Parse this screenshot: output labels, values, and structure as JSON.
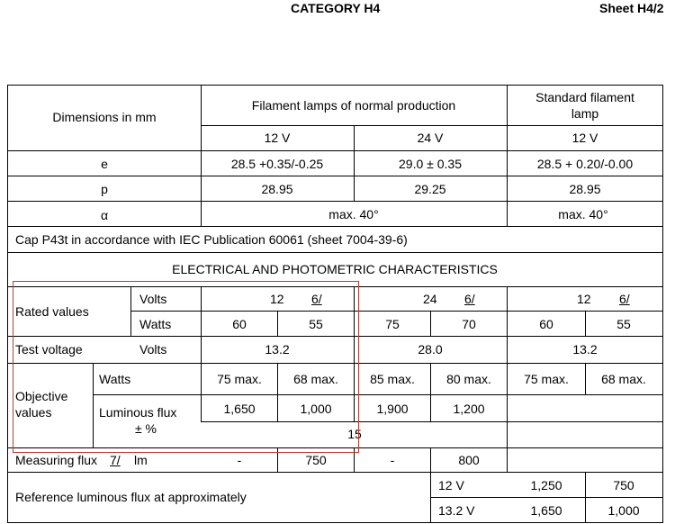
{
  "header": {
    "title": "CATEGORY H4",
    "sheet": "Sheet H4/2"
  },
  "table": {
    "dimensions_label": "Dimensions in mm",
    "normal_production": "Filament lamps of normal production",
    "standard_line1": "Standard filament",
    "standard_line2": "lamp",
    "voltages": [
      "12 V",
      "24 V",
      "12 V"
    ],
    "rows": [
      {
        "name": "e",
        "values": [
          "28.5 +0.35/-0.25",
          "29.0 ± 0.35",
          "28.5 + 0.20/-0.00"
        ]
      },
      {
        "name": "p",
        "values": [
          "28.95",
          "29.25",
          "28.95"
        ]
      },
      {
        "name": "α",
        "values": [
          "max. 40°",
          "max. 40°"
        ]
      }
    ],
    "cap": "Cap P43t in accordance with IEC Publication 60061 (sheet 7004-39-6)",
    "elec_header": "ELECTRICAL AND PHOTOMETRIC CHARACTERISTICS",
    "rated_values": "Rated values",
    "volts": "Volts",
    "watts": "Watts",
    "rated_volts": [
      {
        "num": "12",
        "ref": "6/"
      },
      {
        "num": "24",
        "ref": "6/"
      },
      {
        "num": "12",
        "ref": "6/"
      }
    ],
    "rated_watts": [
      "60",
      "55",
      "75",
      "70",
      "60",
      "55"
    ],
    "test_voltage": "Test voltage",
    "test_volts": [
      "13.2",
      "28.0",
      "13.2"
    ],
    "objective_line1": "Objective",
    "objective_line2": "values",
    "obj_watts": [
      "75 max.",
      "68 max.",
      "85 max.",
      "80 max.",
      "75 max.",
      "68 max."
    ],
    "lum_flux_line1": "Luminous flux",
    "lum_flux_line2": "± %",
    "lum_flux": [
      "1,650",
      "1,000",
      "1,900",
      "1,200"
    ],
    "tolerance": "15",
    "measuring_flux": "Measuring flux",
    "measuring_ref": "7/",
    "measuring_unit": "lm",
    "measuring_values": [
      "-",
      "750",
      "-",
      "800"
    ],
    "reference_flux": "Reference luminous flux at approximately",
    "ref_rows": [
      {
        "voltage": "12 V",
        "values": [
          "1,250",
          "750"
        ]
      },
      {
        "voltage": "13.2 V",
        "values": [
          "1,650",
          "1,000"
        ]
      }
    ]
  }
}
